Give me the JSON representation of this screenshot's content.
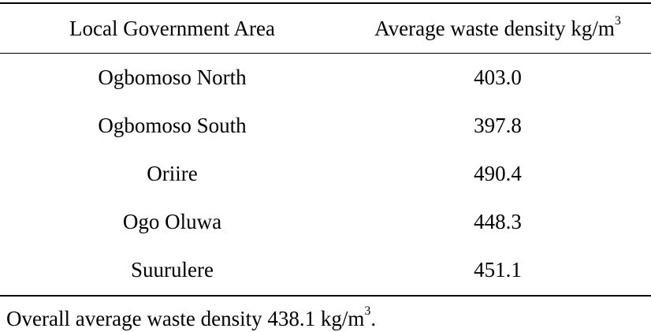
{
  "table": {
    "headers": {
      "col1": "Local Government Area",
      "col2_text": "Average waste density kg/m",
      "col2_sup": "3"
    },
    "rows": [
      {
        "area": "Ogbomoso North",
        "density": "403.0"
      },
      {
        "area": "Ogbomoso South",
        "density": "397.8"
      },
      {
        "area": "Oriire",
        "density": "490.4"
      },
      {
        "area": "Ogo Oluwa",
        "density": "448.3"
      },
      {
        "area": "Suurulere",
        "density": "451.1"
      }
    ]
  },
  "footnote": {
    "text": "Overall average waste density 438.1 kg/m",
    "sup": "3",
    "end": "."
  }
}
